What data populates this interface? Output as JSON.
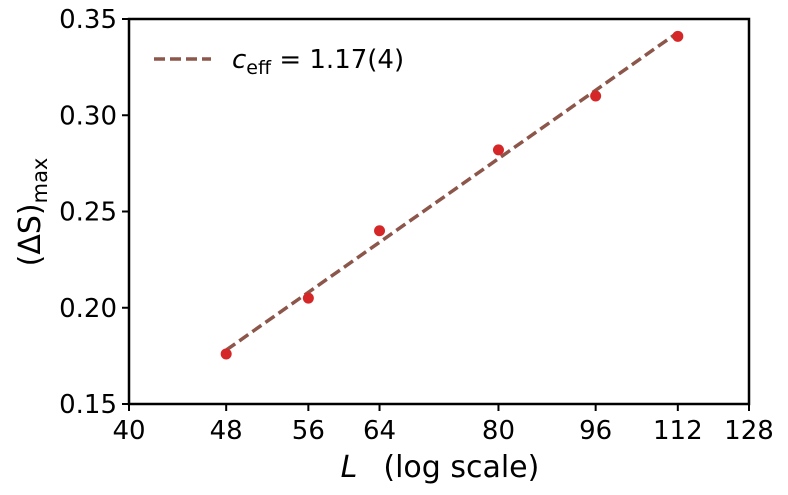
{
  "chart_data": {
    "type": "scatter",
    "title": "",
    "x_scale": "log",
    "xlim": [
      40,
      128
    ],
    "ylim": [
      0.15,
      0.35
    ],
    "x_ticks": [
      40,
      48,
      56,
      64,
      80,
      96,
      112,
      128
    ],
    "y_ticks": [
      "0.15",
      "0.20",
      "0.25",
      "0.30",
      "0.35"
    ],
    "xlabel": {
      "symbol": "L",
      "suffix": "(log scale)"
    },
    "ylabel": {
      "main": "(ΔS)",
      "sub": "max"
    },
    "grid": false,
    "legend_position": "top-left",
    "series": [
      {
        "kind": "points",
        "color": "#d62728",
        "x": [
          48,
          56,
          64,
          80,
          96,
          112
        ],
        "y": [
          0.176,
          0.205,
          0.24,
          0.282,
          0.31,
          0.341
        ]
      },
      {
        "kind": "fit",
        "style": "dashed",
        "color": "#8c564b",
        "legend": {
          "symbol": "c",
          "sub": "eff",
          "value": " = 1.17(4)"
        },
        "x": [
          48,
          112
        ],
        "y": [
          0.178,
          0.343
        ]
      }
    ]
  }
}
